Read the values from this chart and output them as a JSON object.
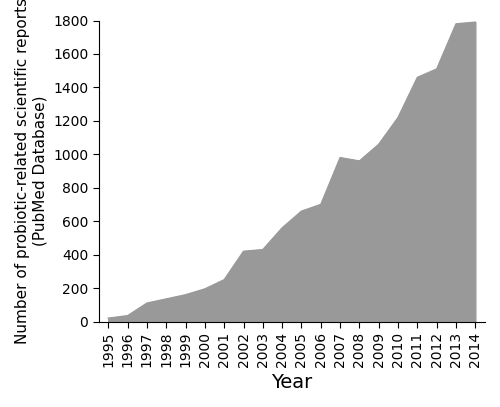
{
  "years": [
    1995,
    1996,
    1997,
    1998,
    1999,
    2000,
    2001,
    2002,
    2003,
    2004,
    2005,
    2006,
    2007,
    2008,
    2009,
    2010,
    2011,
    2012,
    2013,
    2014
  ],
  "values": [
    20,
    35,
    110,
    135,
    160,
    195,
    250,
    420,
    430,
    560,
    660,
    700,
    980,
    960,
    1060,
    1220,
    1460,
    1510,
    1780,
    1790
  ],
  "fill_color": "#999999",
  "line_color": "#999999",
  "background_color": "#ffffff",
  "xlabel": "Year",
  "ylabel": "Number of probiotic-related scientific reports\n(PubMed Database)",
  "ylim": [
    0,
    1800
  ],
  "yticks": [
    0,
    200,
    400,
    600,
    800,
    1000,
    1200,
    1400,
    1600,
    1800
  ],
  "xlabel_fontsize": 14,
  "ylabel_fontsize": 11,
  "tick_fontsize": 10
}
